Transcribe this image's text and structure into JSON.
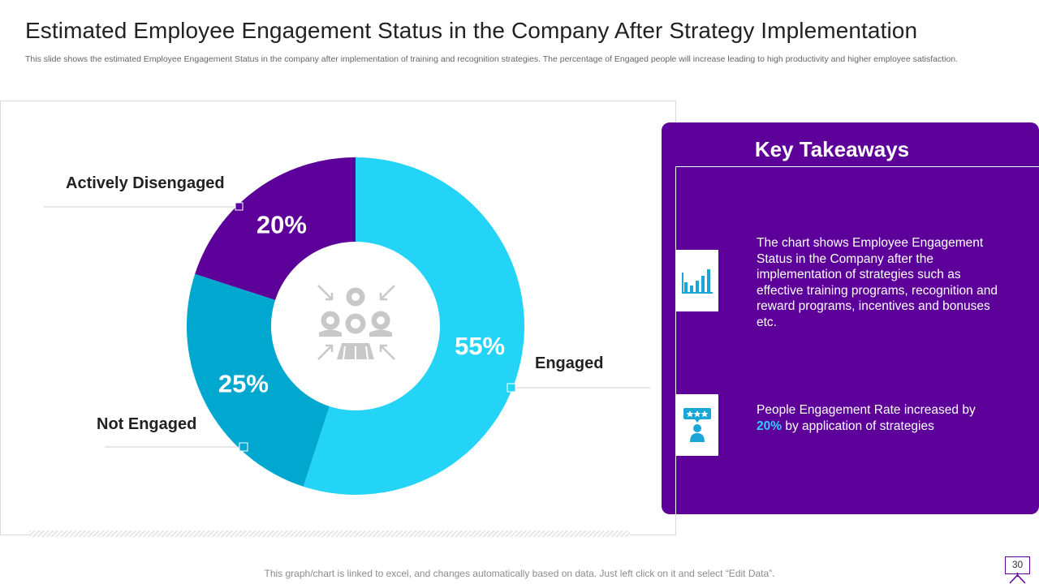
{
  "header": {
    "title": "Estimated Employee Engagement Status in the Company After Strategy Implementation",
    "subtitle": "This slide shows the estimated Employee Engagement Status in the company after implementation of training and recognition strategies. The percentage of Engaged people will increase leading to high productivity and higher employee satisfaction."
  },
  "chart_data": {
    "type": "pie",
    "variant": "donut",
    "categories": [
      "Engaged",
      "Not Engaged",
      "Actively Disengaged"
    ],
    "values": [
      55,
      25,
      20
    ],
    "value_labels": [
      "55%",
      "25%",
      "20%"
    ],
    "colors": [
      "#24d4f7",
      "#00a8cf",
      "#5c0099"
    ],
    "center_icon": "team-focus-icon",
    "legend": "callouts"
  },
  "takeaways": {
    "title": "Key Takeaways",
    "points": [
      {
        "icon": "bar-chart-icon",
        "text": "The chart shows Employee Engagement Status in the Company after the implementation of strategies such as effective training programs, recognition and reward programs, incentives and bonuses etc."
      },
      {
        "icon": "rated-employee-icon",
        "text_before": "People Engagement Rate increased by",
        "highlight": "20%",
        "text_after": "by application of strategies"
      }
    ]
  },
  "footer": {
    "note": "This graph/chart is linked to excel, and changes automatically based on data. Just left click on it and select “Edit Data”.",
    "page_number": "30"
  },
  "colors": {
    "brand_purple": "#5c0099",
    "highlight_blue": "#33ccff"
  }
}
